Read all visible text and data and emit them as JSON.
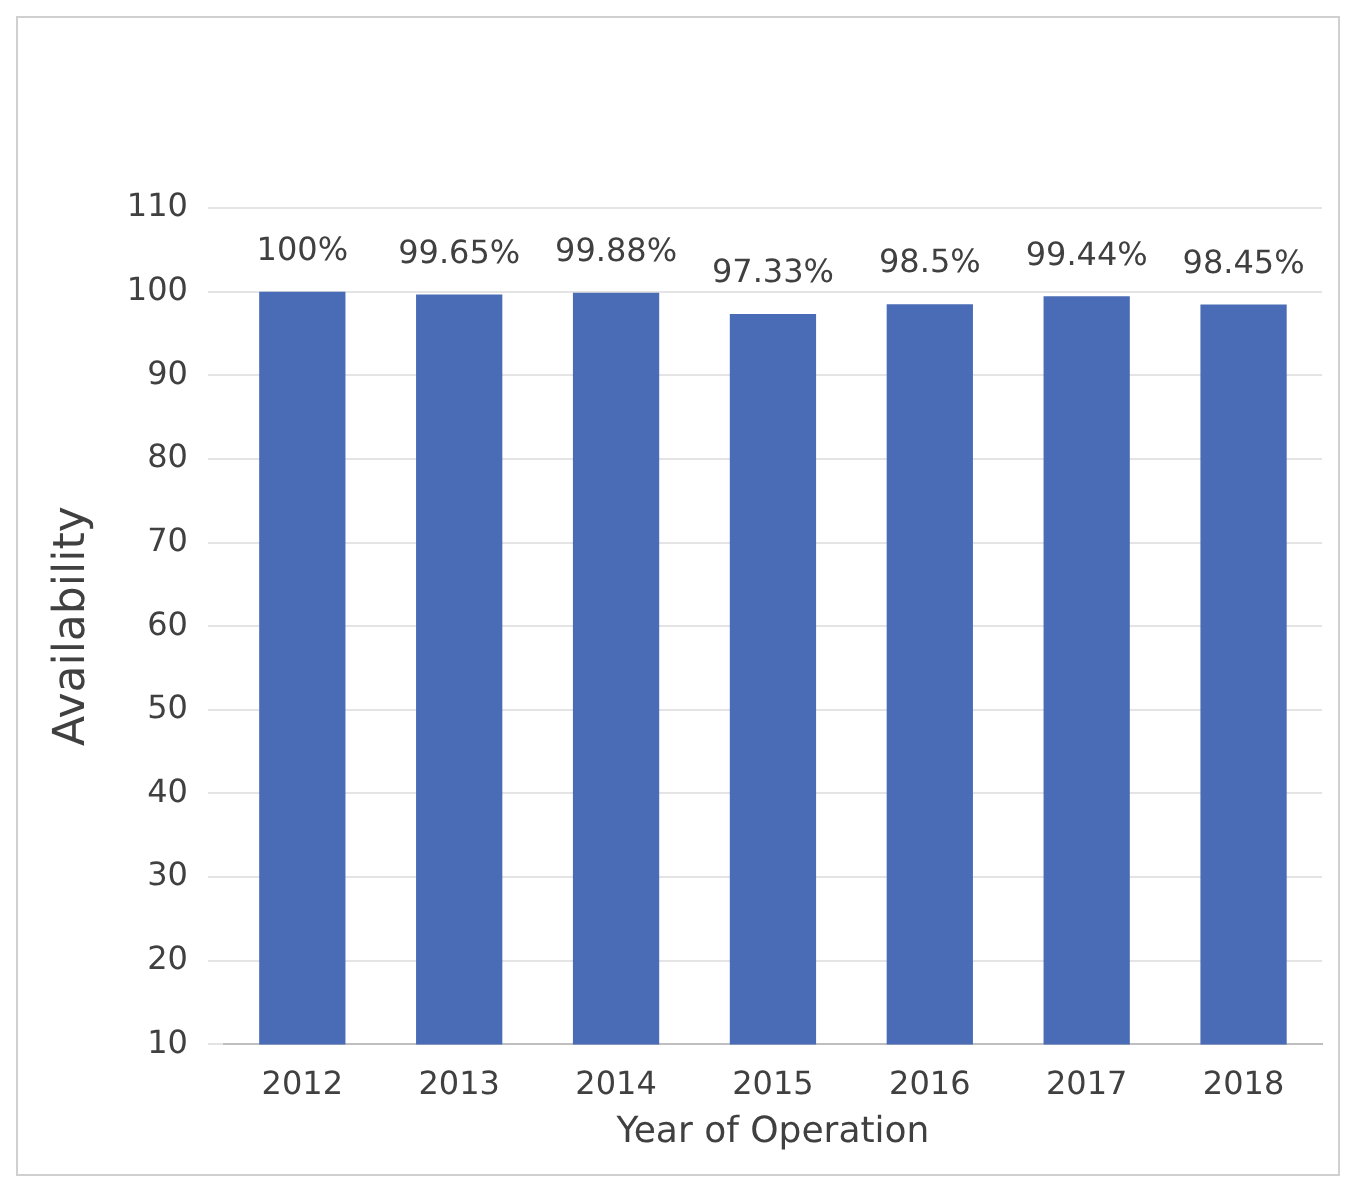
{
  "chart_data": {
    "type": "bar",
    "xlabel": "Year of Operation",
    "ylabel": "Availability",
    "categories": [
      "2012",
      "2013",
      "2014",
      "2015",
      "2016",
      "2017",
      "2018"
    ],
    "values": [
      100,
      99.65,
      99.88,
      97.33,
      98.5,
      99.44,
      98.45
    ],
    "value_labels": [
      "100%",
      "99.65%",
      "99.88%",
      "97.33%",
      "98.5%",
      "99.44%",
      "98.45%"
    ],
    "color": "#4a6cb6",
    "ylim": [
      10,
      110
    ],
    "yticks": [
      10,
      20,
      30,
      40,
      50,
      60,
      70,
      80,
      90,
      100,
      110
    ],
    "grid": "y",
    "legend": false
  }
}
